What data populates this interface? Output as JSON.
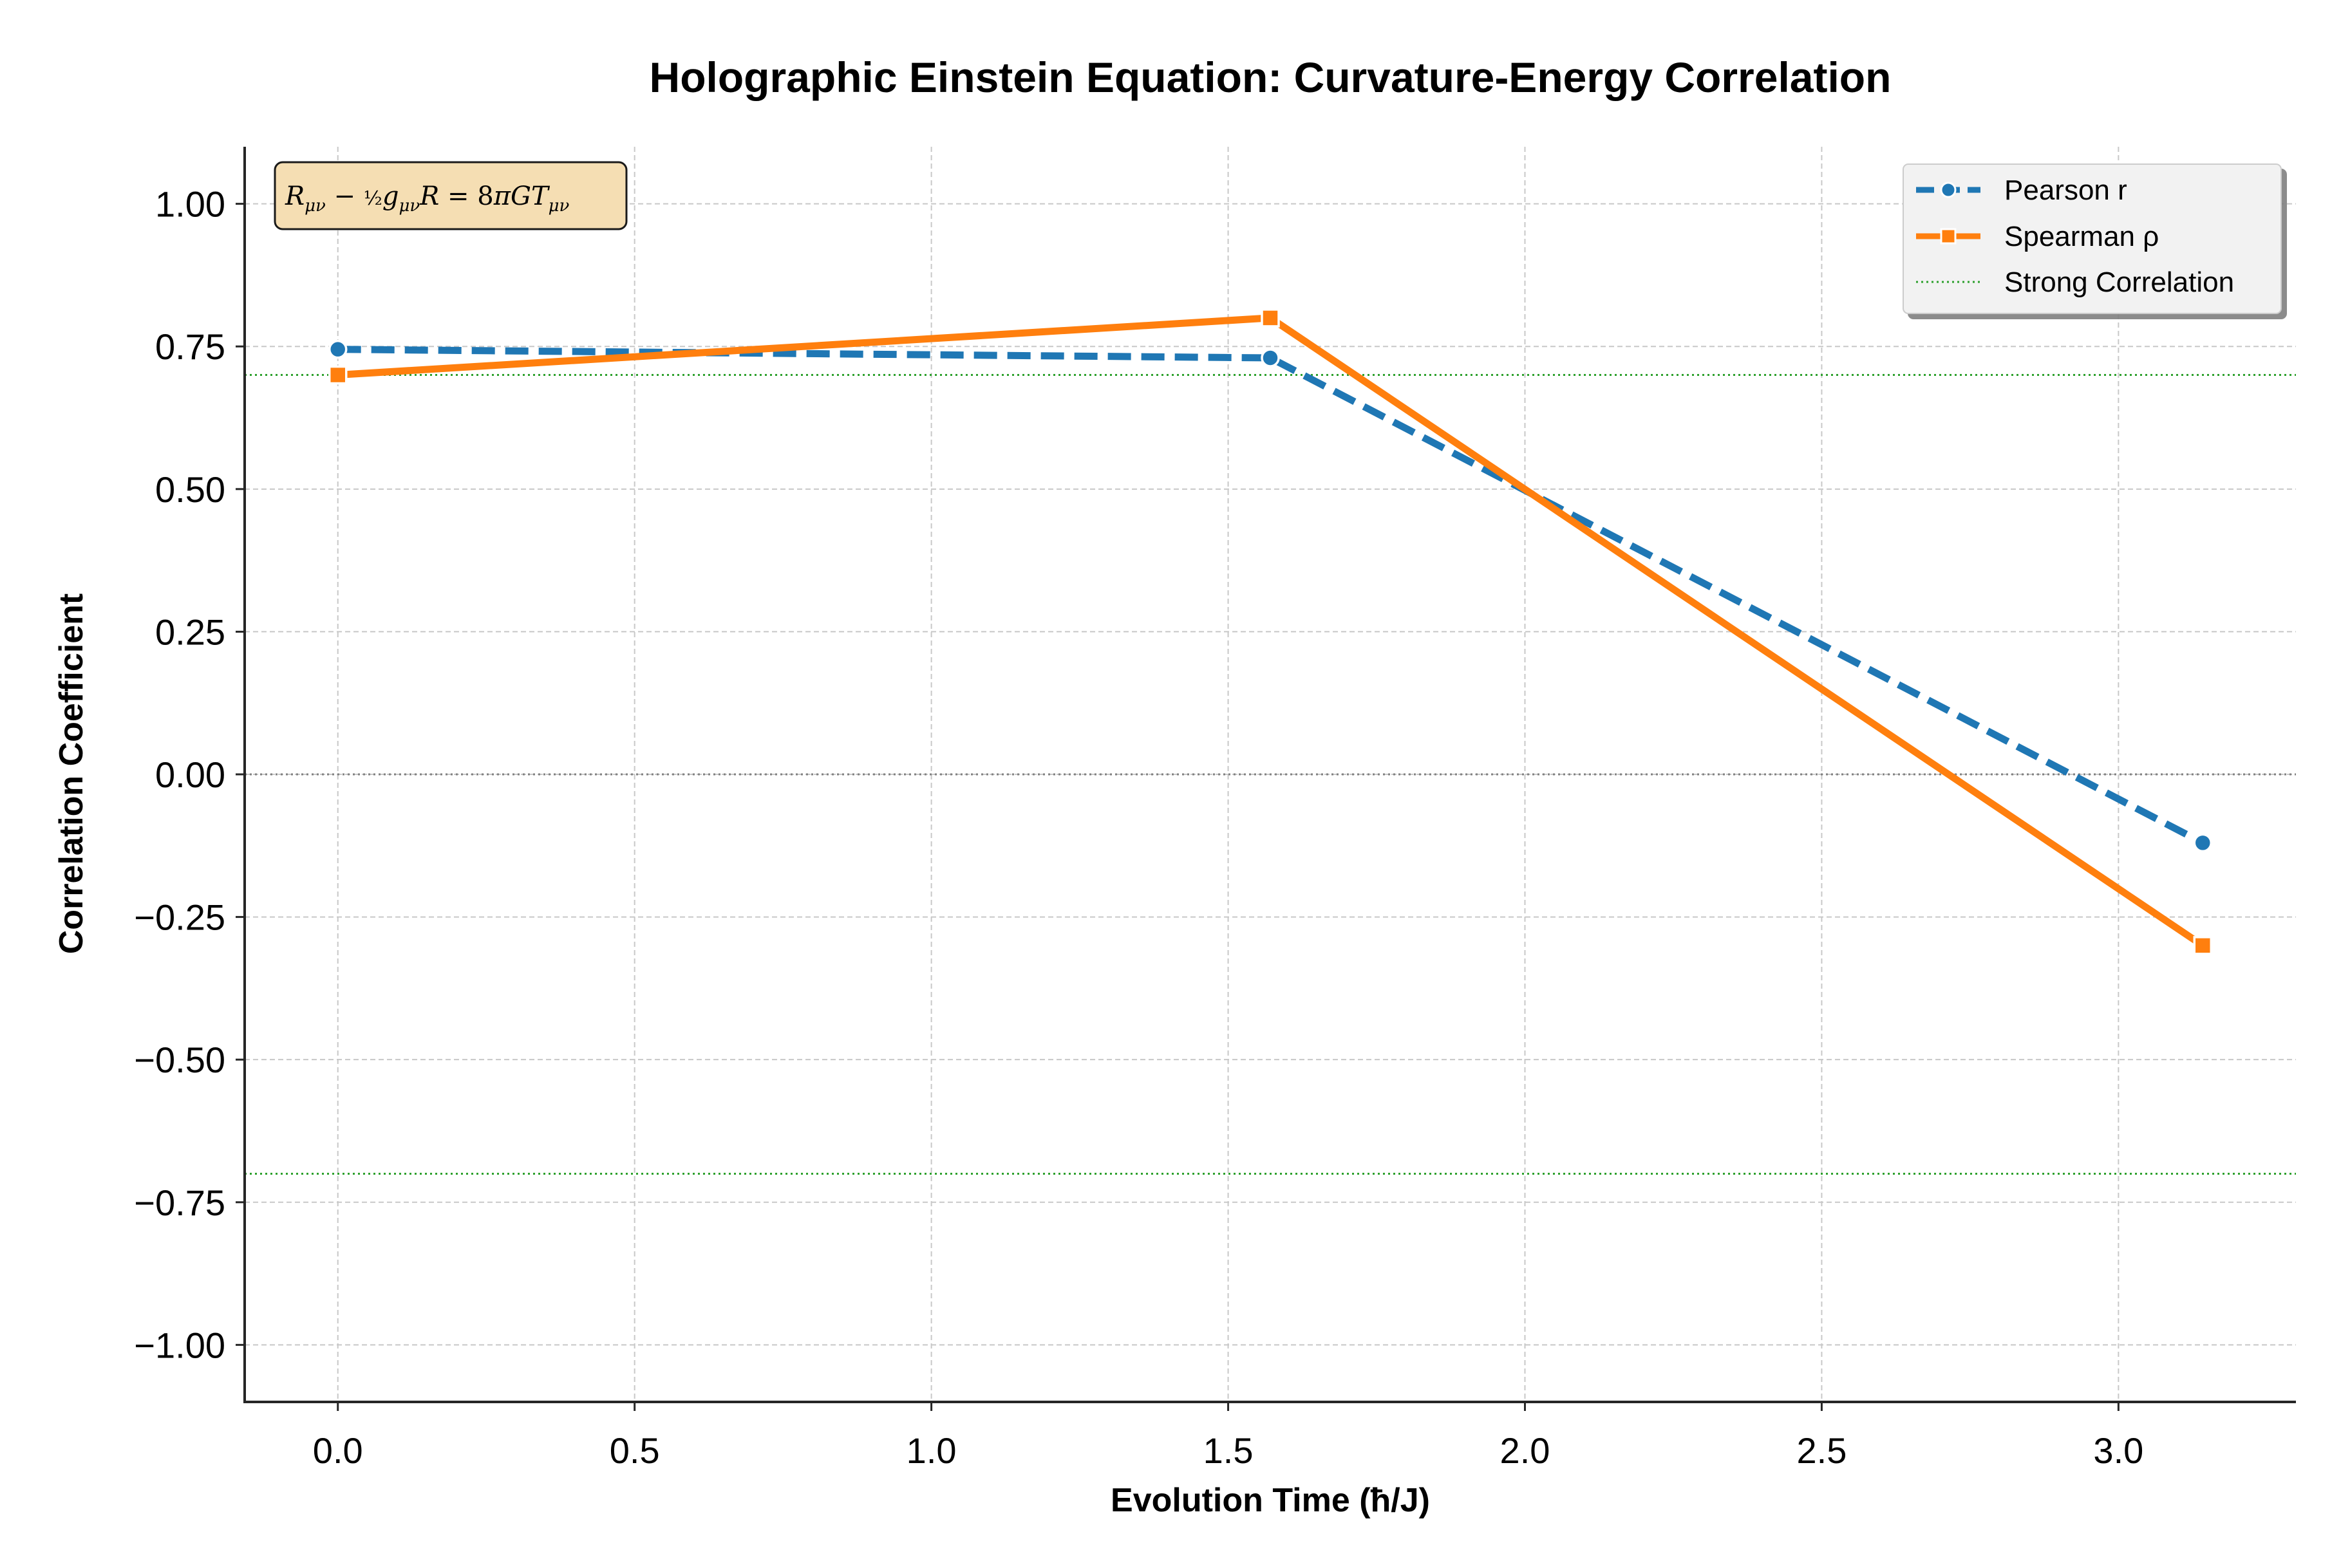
{
  "chart_data": {
    "type": "line",
    "title": "Holographic Einstein Equation: Curvature-Energy Correlation",
    "xlabel": "Evolution Time (ħ/J)",
    "ylabel": "Correlation Coefficient",
    "xlim": [
      -0.157,
      3.299
    ],
    "ylim": [
      -1.1,
      1.1
    ],
    "x_ticks": [
      0.0,
      0.5,
      1.0,
      1.5,
      2.0,
      2.5,
      3.0
    ],
    "x_tick_labels": [
      "0.0",
      "0.5",
      "1.0",
      "1.5",
      "2.0",
      "2.5",
      "3.0"
    ],
    "y_ticks": [
      1.0,
      0.75,
      0.5,
      0.25,
      0.0,
      -0.25,
      -0.5,
      -0.75,
      -1.0
    ],
    "y_tick_labels": [
      "1.00",
      "0.75",
      "0.50",
      "0.25",
      "0.00",
      "−0.25",
      "−0.50",
      "−0.75",
      "−1.00"
    ],
    "x": [
      0.0,
      1.571,
      3.142
    ],
    "series": [
      {
        "name": "Pearson r",
        "values": [
          0.745,
          0.73,
          -0.12
        ],
        "color": "#1f77b4",
        "line_style": "dashed",
        "marker": "circle"
      },
      {
        "name": "Spearman ρ",
        "values": [
          0.7,
          0.8,
          -0.3
        ],
        "color": "#ff7f0e",
        "line_style": "solid",
        "marker": "square"
      }
    ],
    "reference_lines": [
      {
        "name": "Strong Correlation",
        "values": [
          0.7,
          -0.7
        ],
        "color": "#2ca02c",
        "line_style": "dotted"
      },
      {
        "values": [
          0.0
        ],
        "color": "#808080",
        "line_style": "dotted"
      }
    ],
    "grid": true,
    "legend_position": "top-right",
    "annotation": {
      "text": "Rμν − ½ gμν R = 8πG Tμν",
      "position": "top-left",
      "background": "#f5deb3"
    }
  }
}
